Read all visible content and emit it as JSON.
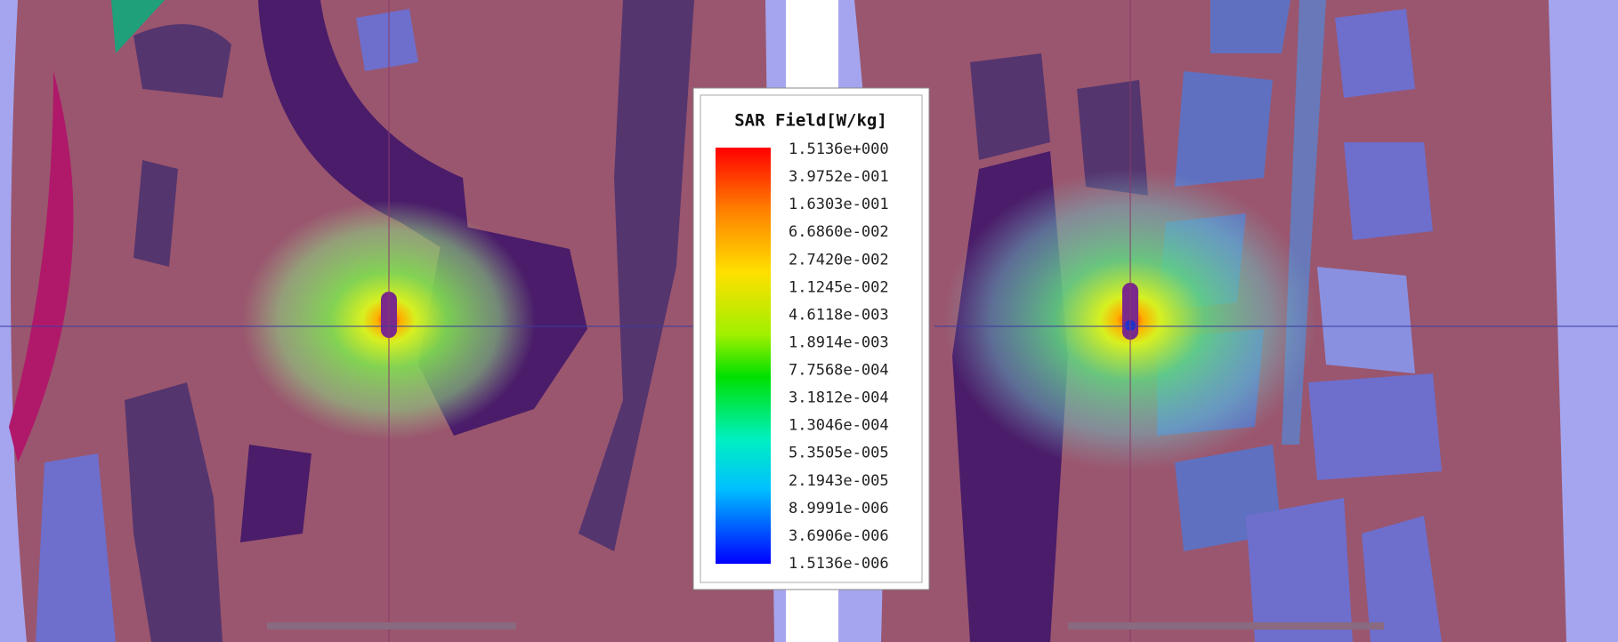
{
  "legend": {
    "title": "SAR Field[W/kg]",
    "labels": [
      "1.5136e+000",
      "3.9752e-001",
      "1.6303e-001",
      "6.6860e-002",
      "2.7420e-002",
      "1.1245e-002",
      "4.6118e-003",
      "1.8914e-003",
      "7.7568e-004",
      "3.1812e-004",
      "1.3046e-004",
      "5.3505e-005",
      "2.1943e-005",
      "8.9991e-006",
      "3.6906e-006",
      "1.5136e-006"
    ]
  }
}
